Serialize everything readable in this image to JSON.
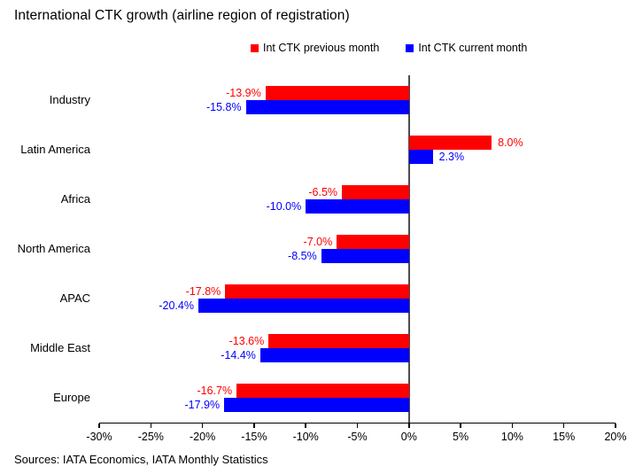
{
  "title": "International CTK growth (airline region of registration)",
  "source": "Sources: IATA Economics, IATA Monthly Statistics",
  "legend": [
    {
      "label": "Int CTK previous month",
      "color": "#ff0000"
    },
    {
      "label": "Int CTK current month",
      "color": "#0000ff"
    }
  ],
  "colors": {
    "previous_month": "#ff0000",
    "current_month": "#0000ff",
    "zero_line": "#4d4d4d",
    "axis": "#000000"
  },
  "chart_data": {
    "type": "bar",
    "orientation": "horizontal",
    "title": "International CTK growth (airline region of registration)",
    "categories": [
      "Industry",
      "Latin America",
      "Africa",
      "North America",
      "APAC",
      "Middle East",
      "Europe"
    ],
    "series": [
      {
        "name": "Int CTK previous month",
        "color": "#ff0000",
        "values": [
          -13.9,
          8.0,
          -6.5,
          -7.0,
          -17.8,
          -13.6,
          -16.7
        ]
      },
      {
        "name": "Int CTK current month",
        "color": "#0000ff",
        "values": [
          -15.8,
          2.3,
          -10.0,
          -8.5,
          -20.4,
          -14.4,
          -17.9
        ]
      }
    ],
    "xlabel": "",
    "ylabel": "",
    "xlim": [
      -30,
      20
    ],
    "xticks": [
      "-30%",
      "-25%",
      "-20%",
      "-15%",
      "-10%",
      "-5%",
      "0%",
      "5%",
      "10%",
      "15%",
      "20%"
    ],
    "value_label_format": "one_decimal_percent",
    "grid": false,
    "legend_position": "top-center"
  }
}
